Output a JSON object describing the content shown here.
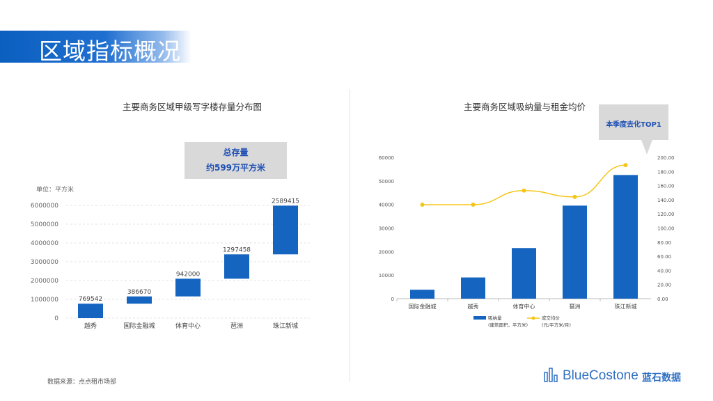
{
  "header": {
    "title": "区域指标概况"
  },
  "left_chart": {
    "title": "主要商务区域甲级写字楼存量分布图",
    "unit_label": "单位：平方米",
    "callout_line1": "总存量",
    "callout_line2": "约599万平方米"
  },
  "right_chart": {
    "title": "主要商务区域吸纳量与租金均价",
    "callout": "本季度去化TOP1",
    "legend_bar": "吸纳量",
    "legend_bar_sub": "(建筑面积，平方米)",
    "legend_line": "成交均价",
    "legend_line_sub": "(元/平方米/月)"
  },
  "footer": {
    "source": "数据来源：点点租市场部",
    "logo_text": "BlueCostone",
    "logo_cn": "蓝石数据"
  },
  "colors": {
    "bar": "#1565c0",
    "line": "#f5c518",
    "accent": "#0b5fbf"
  },
  "chart_data": [
    {
      "type": "bar",
      "subtype": "waterfall",
      "title": "主要商务区域甲级写字楼存量分布图",
      "ylabel": "单位：平方米",
      "ylim": [
        0,
        6000000
      ],
      "yticks": [
        0,
        1000000,
        2000000,
        3000000,
        4000000,
        5000000,
        6000000
      ],
      "categories": [
        "越秀",
        "国际金融城",
        "体育中心",
        "琶洲",
        "珠江新城"
      ],
      "values": [
        769542,
        386670,
        942000,
        1297458,
        2589415
      ],
      "grid": true
    },
    {
      "type": "bar",
      "subtype": "bar+line dual axis",
      "title": "主要商务区域吸纳量与租金均价",
      "categories": [
        "国际金融城",
        "越秀",
        "体育中心",
        "琶洲",
        "珠江新城"
      ],
      "ylim_left": [
        0,
        60000
      ],
      "yticks_left": [
        0,
        10000,
        20000,
        30000,
        40000,
        50000,
        60000
      ],
      "ylim_right": [
        0,
        200
      ],
      "yticks_right": [
        "0.00",
        "20.00",
        "40.00",
        "60.00",
        "80.00",
        "100.00",
        "120.00",
        "140.00",
        "160.00",
        "180.00",
        "200.00"
      ],
      "series": [
        {
          "name": "吸纳量",
          "axis": "left",
          "type": "bar",
          "values": [
            3800,
            9000,
            21500,
            39500,
            52500
          ]
        },
        {
          "name": "成交均价",
          "axis": "right",
          "type": "line",
          "values": [
            133,
            133,
            153,
            144,
            189
          ]
        }
      ],
      "legend": "bottom"
    }
  ]
}
